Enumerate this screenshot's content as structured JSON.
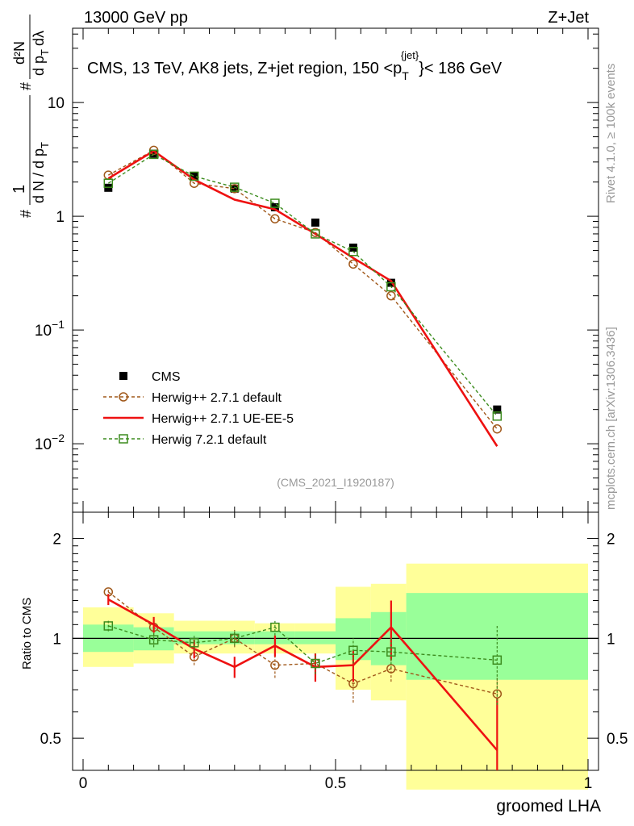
{
  "header": {
    "left": "13000 GeV pp",
    "right": "Z+Jet"
  },
  "side_labels": {
    "rivet": "Rivet 4.1.0, ≥ 100k events",
    "mcplots": "mcplots.cern.ch [arXiv:1306.3436]"
  },
  "chart_data": {
    "type": "line",
    "title_parts": {
      "prefix": "CMS, 13 TeV, AK8 jets, Z+jet region, 150 <p",
      "sub": "T",
      "sup": "{jet}",
      "suffix": "}< 186 GeV"
    },
    "analysis_id": "(CMS_2021_I1920187)",
    "xlabel": "groomed LHA",
    "ylabel_parts": [
      "#",
      "1",
      "d N / d p",
      "T",
      "#",
      "d²N",
      "d p",
      "T",
      "dλ"
    ],
    "ratio_ylabel": "Ratio to CMS",
    "x_ticks": [
      "0",
      "0.5",
      "1"
    ],
    "y_ticks_main": [
      {
        "value": 10,
        "base": "10",
        "exp": ""
      },
      {
        "value": 1,
        "base": "1",
        "exp": ""
      },
      {
        "value": 0.1,
        "base": "10",
        "exp": "−1"
      },
      {
        "value": 0.01,
        "base": "10",
        "exp": "−2"
      }
    ],
    "y_ticks_ratio": [
      "2",
      "1",
      "0.5"
    ],
    "xlim": [
      0,
      1
    ],
    "ylim_main": [
      0.0025,
      45
    ],
    "ylim_ratio": [
      0.4,
      2.4
    ],
    "bins": [
      {
        "lo": 0.0,
        "hi": 0.1
      },
      {
        "lo": 0.1,
        "hi": 0.18
      },
      {
        "lo": 0.18,
        "hi": 0.25
      },
      {
        "lo": 0.25,
        "hi": 0.34
      },
      {
        "lo": 0.34,
        "hi": 0.42
      },
      {
        "lo": 0.42,
        "hi": 0.5
      },
      {
        "lo": 0.5,
        "hi": 0.57
      },
      {
        "lo": 0.57,
        "hi": 0.64
      },
      {
        "lo": 0.64,
        "hi": 1.0
      }
    ],
    "x": [
      0.05,
      0.14,
      0.22,
      0.3,
      0.38,
      0.46,
      0.535,
      0.61,
      0.82
    ],
    "band_yellow": [
      [
        0.82,
        1.24
      ],
      [
        0.84,
        1.19
      ],
      [
        0.9,
        1.13
      ],
      [
        0.9,
        1.13
      ],
      [
        0.9,
        1.11
      ],
      [
        0.9,
        1.11
      ],
      [
        0.7,
        1.43
      ],
      [
        0.65,
        1.46
      ],
      [
        0.35,
        1.68
      ]
    ],
    "band_green": [
      [
        0.91,
        1.1
      ],
      [
        0.92,
        1.08
      ],
      [
        0.96,
        1.05
      ],
      [
        0.96,
        1.05
      ],
      [
        0.96,
        1.05
      ],
      [
        0.96,
        1.05
      ],
      [
        0.86,
        1.15
      ],
      [
        0.83,
        1.2
      ],
      [
        0.75,
        1.37
      ]
    ],
    "series": [
      {
        "name": "CMS",
        "color": "#000000",
        "marker": "square-filled",
        "values": [
          1.78,
          3.55,
          2.25,
          1.75,
          1.2,
          0.88,
          0.53,
          0.26,
          0.02
        ],
        "ratio": [
          1,
          1,
          1,
          1,
          1,
          1,
          1,
          1,
          1
        ]
      },
      {
        "name": "Herwig++ 2.7.1 default",
        "color": "#a0581a",
        "marker": "circle-open",
        "dashed": true,
        "values": [
          2.3,
          3.8,
          1.95,
          1.75,
          0.95,
          0.72,
          0.38,
          0.2,
          0.0135
        ],
        "ratio": [
          1.38,
          1.08,
          0.88,
          1.0,
          0.83,
          0.84,
          0.73,
          0.81,
          0.68
        ],
        "ratio_err": [
          0.04,
          0.06,
          0.05,
          0.06,
          0.07,
          0.07,
          0.09,
          0.07,
          0.08
        ]
      },
      {
        "name": "Herwig++ 2.7.1 UE-EE-5",
        "color": "#ee1111",
        "marker": "none",
        "dashed": false,
        "values": [
          2.15,
          3.75,
          2.1,
          1.4,
          1.15,
          0.7,
          0.43,
          0.27,
          0.0095
        ],
        "ratio": [
          1.31,
          1.1,
          0.93,
          0.82,
          0.95,
          0.82,
          0.83,
          1.08,
          0.46
        ],
        "ratio_err": [
          0.05,
          0.06,
          0.06,
          0.06,
          0.07,
          0.08,
          0.09,
          0.22,
          0.2
        ]
      },
      {
        "name": "Herwig 7.2.1 default",
        "color": "#3c8c1e",
        "marker": "square-open",
        "dashed": true,
        "values": [
          1.95,
          3.5,
          2.25,
          1.8,
          1.3,
          0.7,
          0.49,
          0.24,
          0.0175
        ],
        "ratio": [
          1.09,
          0.99,
          0.97,
          1.0,
          1.08,
          0.84,
          0.92,
          0.91,
          0.86
        ],
        "ratio_err": [
          0.04,
          0.05,
          0.05,
          0.05,
          0.06,
          0.06,
          0.08,
          0.1,
          0.23
        ]
      }
    ],
    "legend_position": "lower-left"
  }
}
